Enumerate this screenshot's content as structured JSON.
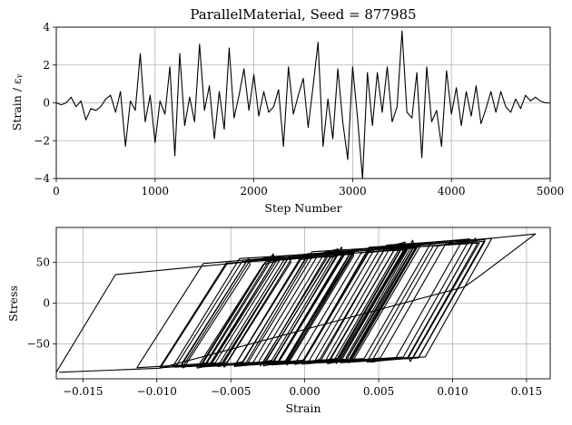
{
  "chart_data": [
    {
      "type": "line",
      "title": "ParallelMaterial, Seed = 877985",
      "xlabel": "Step Number",
      "ylabel": "Strain / εᵧ",
      "xlim": [
        0,
        5000
      ],
      "ylim": [
        -4,
        4
      ],
      "xticks": [
        "0",
        "1000",
        "2000",
        "3000",
        "4000",
        "5000"
      ],
      "yticks": [
        "−4",
        "−2",
        "0",
        "2",
        "4"
      ],
      "grid": true,
      "series": [
        {
          "x": [
            0,
            50,
            100,
            150,
            200,
            250,
            300,
            350,
            400,
            450,
            500,
            550,
            600,
            650,
            700,
            750,
            800,
            850,
            900,
            950,
            1000,
            1050,
            1100,
            1150,
            1200,
            1250,
            1300,
            1350,
            1400,
            1450,
            1500,
            1550,
            1600,
            1650,
            1700,
            1750,
            1800,
            1850,
            1900,
            1950,
            2000,
            2050,
            2100,
            2150,
            2200,
            2250,
            2300,
            2350,
            2400,
            2450,
            2500,
            2550,
            2600,
            2650,
            2700,
            2750,
            2800,
            2850,
            2900,
            2950,
            3000,
            3050,
            3100,
            3150,
            3200,
            3250,
            3300,
            3350,
            3400,
            3450,
            3500,
            3550,
            3600,
            3650,
            3700,
            3750,
            3800,
            3850,
            3900,
            3950,
            4000,
            4050,
            4100,
            4150,
            4200,
            4250,
            4300,
            4350,
            4400,
            4450,
            4500,
            4550,
            4600,
            4650,
            4700,
            4750,
            4800,
            4850,
            4900,
            4950,
            5000
          ],
          "values": [
            0.0,
            -0.1,
            0.0,
            0.3,
            -0.2,
            0.1,
            -0.9,
            -0.3,
            -0.4,
            -0.2,
            0.2,
            0.4,
            -0.5,
            0.6,
            -2.3,
            0.1,
            -0.4,
            2.6,
            -1.0,
            0.4,
            -2.1,
            0.1,
            -0.6,
            1.9,
            -2.8,
            2.6,
            -1.2,
            0.3,
            -1.0,
            3.1,
            -0.4,
            0.9,
            -1.9,
            0.6,
            -1.4,
            2.9,
            -0.8,
            0.4,
            1.8,
            -0.4,
            1.5,
            -0.7,
            0.6,
            -0.5,
            -0.2,
            0.7,
            -2.3,
            1.9,
            -0.6,
            0.4,
            1.3,
            -1.3,
            0.9,
            3.2,
            -2.3,
            0.2,
            -1.9,
            1.8,
            -1.0,
            -3.0,
            1.9,
            -0.8,
            -4.0,
            1.6,
            -1.2,
            1.6,
            -0.5,
            1.9,
            -1.0,
            -0.2,
            3.8,
            -0.5,
            -0.8,
            1.6,
            -2.9,
            1.9,
            -1.0,
            -0.4,
            -2.3,
            1.7,
            -0.6,
            0.8,
            -1.2,
            0.6,
            -0.7,
            0.9,
            -1.1,
            -0.3,
            0.6,
            -0.5,
            0.6,
            -0.2,
            -0.5,
            0.2,
            -0.3,
            0.4,
            0.1,
            0.3,
            0.1,
            0.0,
            0.0
          ]
        }
      ]
    },
    {
      "type": "line",
      "title": "",
      "xlabel": "Strain",
      "ylabel": "Stress",
      "xlim": [
        -0.0168,
        0.0166
      ],
      "ylim": [
        -93,
        93
      ],
      "xticks": [
        "−0.015",
        "−0.010",
        "−0.005",
        "0.000",
        "0.005",
        "0.010",
        "0.015"
      ],
      "yticks": [
        "−50",
        "0",
        "50"
      ],
      "grid": true,
      "series": [
        {
          "x": [
            -0.0168,
            -0.0128,
            0.0156,
            0.0118,
            0.0108,
            -0.0098,
            -0.0166
          ],
          "values": [
            -85,
            35,
            85,
            33,
            20,
            -80,
            -85
          ]
        }
      ]
    }
  ]
}
